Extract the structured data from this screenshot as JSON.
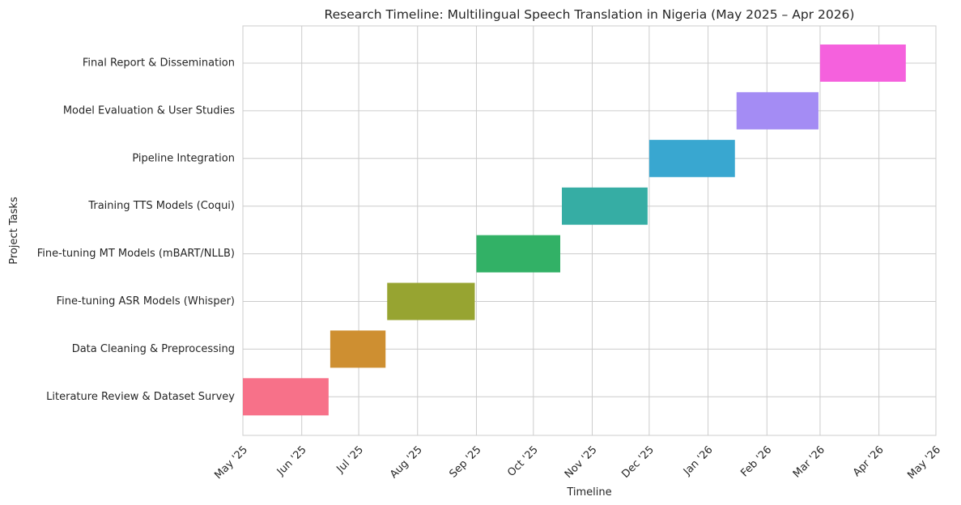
{
  "chart_data": {
    "type": "bar",
    "orientation": "horizontal-gantt",
    "title": "Research Timeline: Multilingual Speech Translation in Nigeria (May 2025 – Apr 2026)",
    "xlabel": "Timeline",
    "ylabel": "Project Tasks",
    "grid": true,
    "x_tick_labels": [
      "May '25",
      "Jun '25",
      "Jul '25",
      "Aug '25",
      "Sep '25",
      "Oct '25",
      "Nov '25",
      "Dec '25",
      "Jan '26",
      "Feb '26",
      "Mar '26",
      "Apr '26",
      "May '26"
    ],
    "x_tick_dates": [
      "2025-05-01",
      "2025-06-01",
      "2025-07-01",
      "2025-08-01",
      "2025-09-01",
      "2025-10-01",
      "2025-11-01",
      "2025-12-01",
      "2026-01-01",
      "2026-02-01",
      "2026-03-01",
      "2026-04-01",
      "2026-05-01"
    ],
    "xlim": [
      "2025-05-01",
      "2026-05-01"
    ],
    "tasks": [
      {
        "task": "Literature Review & Dataset Survey",
        "start": "2025-05-01",
        "end": "2025-06-15",
        "color": "#f77189"
      },
      {
        "task": "Data Cleaning & Preprocessing",
        "start": "2025-06-16",
        "end": "2025-07-15",
        "color": "#ce8f31"
      },
      {
        "task": "Fine-tuning ASR Models (Whisper)",
        "start": "2025-07-16",
        "end": "2025-08-31",
        "color": "#97a431"
      },
      {
        "task": "Fine-tuning MT Models (mBART/NLLB)",
        "start": "2025-09-01",
        "end": "2025-10-15",
        "color": "#32b166"
      },
      {
        "task": "Training TTS Models (Coqui)",
        "start": "2025-10-16",
        "end": "2025-11-30",
        "color": "#36ada4"
      },
      {
        "task": "Pipeline Integration",
        "start": "2025-12-01",
        "end": "2026-01-15",
        "color": "#39a7d0"
      },
      {
        "task": "Model Evaluation & User Studies",
        "start": "2026-01-16",
        "end": "2026-02-28",
        "color": "#a48cf4"
      },
      {
        "task": "Final Report & Dissemination",
        "start": "2026-03-01",
        "end": "2026-04-15",
        "color": "#f561dd"
      }
    ]
  }
}
